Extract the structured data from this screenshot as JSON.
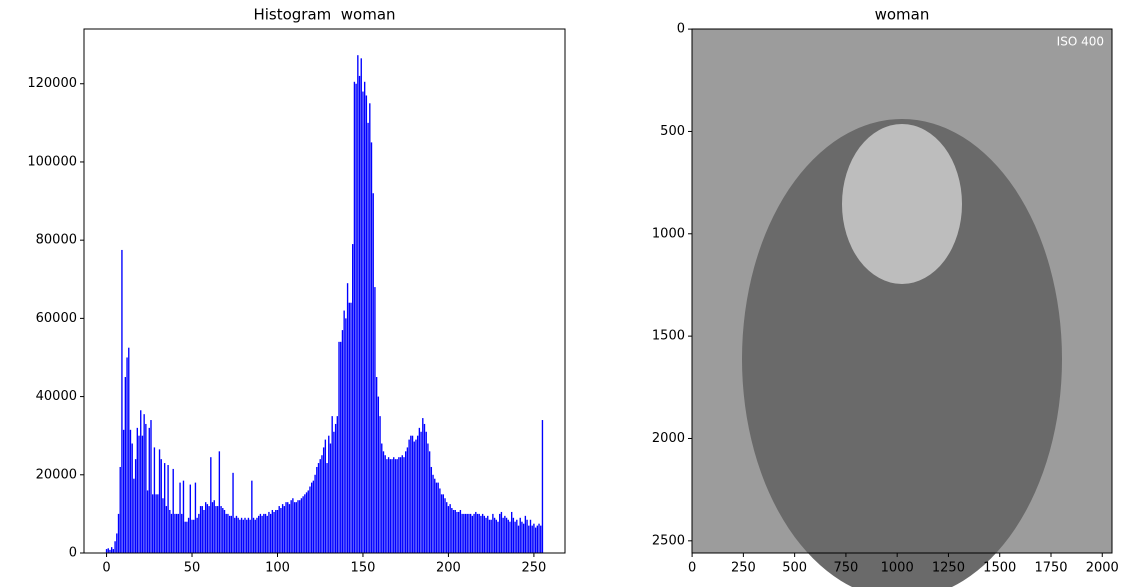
{
  "chart_data": [
    {
      "type": "bar",
      "title": "Histogram  woman",
      "color": "#0000ff",
      "x": [
        0,
        1,
        2,
        3,
        4,
        5,
        6,
        7,
        8,
        9,
        10,
        11,
        12,
        13,
        14,
        15,
        16,
        17,
        18,
        19,
        20,
        21,
        22,
        23,
        24,
        25,
        26,
        27,
        28,
        29,
        30,
        31,
        32,
        33,
        34,
        35,
        36,
        37,
        38,
        39,
        40,
        41,
        42,
        43,
        44,
        45,
        46,
        47,
        48,
        49,
        50,
        51,
        52,
        53,
        54,
        55,
        56,
        57,
        58,
        59,
        60,
        61,
        62,
        63,
        64,
        65,
        66,
        67,
        68,
        69,
        70,
        71,
        72,
        73,
        74,
        75,
        76,
        77,
        78,
        79,
        80,
        81,
        82,
        83,
        84,
        85,
        86,
        87,
        88,
        89,
        90,
        91,
        92,
        93,
        94,
        95,
        96,
        97,
        98,
        99,
        100,
        101,
        102,
        103,
        104,
        105,
        106,
        107,
        108,
        109,
        110,
        111,
        112,
        113,
        114,
        115,
        116,
        117,
        118,
        119,
        120,
        121,
        122,
        123,
        124,
        125,
        126,
        127,
        128,
        129,
        130,
        131,
        132,
        133,
        134,
        135,
        136,
        137,
        138,
        139,
        140,
        141,
        142,
        143,
        144,
        145,
        146,
        147,
        148,
        149,
        150,
        151,
        152,
        153,
        154,
        155,
        156,
        157,
        158,
        159,
        160,
        161,
        162,
        163,
        164,
        165,
        166,
        167,
        168,
        169,
        170,
        171,
        172,
        173,
        174,
        175,
        176,
        177,
        178,
        179,
        180,
        181,
        182,
        183,
        184,
        185,
        186,
        187,
        188,
        189,
        190,
        191,
        192,
        193,
        194,
        195,
        196,
        197,
        198,
        199,
        200,
        201,
        202,
        203,
        204,
        205,
        206,
        207,
        208,
        209,
        210,
        211,
        212,
        213,
        214,
        215,
        216,
        217,
        218,
        219,
        220,
        221,
        222,
        223,
        224,
        225,
        226,
        227,
        228,
        229,
        230,
        231,
        232,
        233,
        234,
        235,
        236,
        237,
        238,
        239,
        240,
        241,
        242,
        243,
        244,
        245,
        246,
        247,
        248,
        249,
        250,
        251,
        252,
        253,
        254,
        255
      ],
      "values": [
        1000,
        1200,
        800,
        1500,
        1000,
        3000,
        5000,
        10000,
        22000,
        77500,
        31500,
        45000,
        50000,
        52500,
        31500,
        28000,
        19000,
        24000,
        32000,
        30000,
        36500,
        30000,
        35500,
        33000,
        16000,
        32000,
        34000,
        15000,
        27000,
        15000,
        15000,
        26500,
        24000,
        14000,
        23000,
        12000,
        22500,
        11000,
        10000,
        21500,
        10000,
        10000,
        10000,
        18000,
        10000,
        18500,
        8000,
        8000,
        9000,
        17500,
        8500,
        8500,
        18000,
        9000,
        10000,
        12000,
        12000,
        11000,
        13000,
        12500,
        12000,
        24500,
        13000,
        13500,
        12000,
        12000,
        26000,
        12000,
        11500,
        11000,
        10000,
        10000,
        9500,
        9500,
        20500,
        9000,
        9500,
        9000,
        8500,
        9000,
        8500,
        9000,
        8500,
        9000,
        8500,
        18500,
        9000,
        8500,
        9000,
        9500,
        10000,
        9500,
        10000,
        10000,
        9500,
        10500,
        10000,
        11000,
        10500,
        11000,
        11000,
        12000,
        11500,
        12500,
        12000,
        13000,
        13000,
        12500,
        13500,
        14000,
        13000,
        13000,
        13500,
        13500,
        14000,
        14500,
        15000,
        15500,
        16000,
        17000,
        18000,
        18500,
        20000,
        22000,
        23000,
        24000,
        25000,
        27000,
        29000,
        23000,
        30000,
        28000,
        35000,
        31000,
        33000,
        35000,
        54000,
        54000,
        57000,
        62000,
        60000,
        69000,
        64000,
        64000,
        79000,
        120500,
        120000,
        127300,
        122000,
        126500,
        118000,
        120500,
        117000,
        110000,
        115000,
        105000,
        92000,
        68000,
        45000,
        40000,
        35000,
        28000,
        26000,
        25000,
        24000,
        24500,
        24000,
        24000,
        24500,
        24000,
        24000,
        24500,
        24500,
        25000,
        24500,
        26000,
        27000,
        29000,
        30000,
        30000,
        28500,
        29000,
        30000,
        32000,
        31000,
        34500,
        33000,
        31000,
        28000,
        26000,
        22000,
        20000,
        19000,
        18000,
        18000,
        16500,
        15000,
        15000,
        14000,
        13000,
        12000,
        12500,
        11500,
        11000,
        11000,
        10500,
        10500,
        11000,
        10000,
        10000,
        10000,
        10000,
        10000,
        10000,
        9500,
        10000,
        10500,
        10000,
        10000,
        9500,
        10000,
        9500,
        9000,
        9500,
        8500,
        8500,
        10000,
        9000,
        8500,
        8000,
        10000,
        10500,
        9000,
        9500,
        9000,
        8500,
        8000,
        10500,
        9000,
        8000,
        8500,
        7000,
        9000,
        8000,
        7500,
        9500,
        8500,
        7000,
        8500,
        7000,
        7500,
        6500,
        7000,
        7500,
        7000,
        34000
      ],
      "xlim": [
        -13.19,
        268.19
      ],
      "xticks": [
        0,
        50,
        100,
        150,
        200,
        250
      ],
      "ylim": [
        0,
        134000
      ],
      "yticks": [
        0,
        20000,
        40000,
        60000,
        80000,
        100000,
        120000
      ]
    },
    {
      "type": "image",
      "title": "woman",
      "image_text": "ISO 400",
      "xlim": [
        -0.5,
        2047.5
      ],
      "xticks": [
        0,
        250,
        500,
        750,
        1000,
        1250,
        1500,
        1750,
        2000
      ],
      "ylim": [
        2559.5,
        -0.5
      ],
      "yticks": [
        0,
        500,
        1000,
        1500,
        2000,
        2500
      ]
    }
  ]
}
